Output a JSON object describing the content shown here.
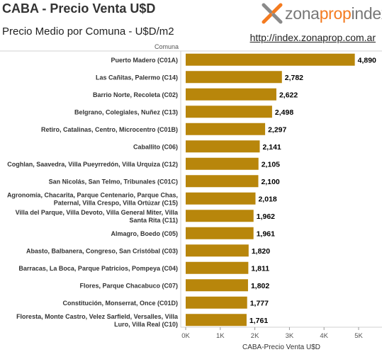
{
  "header": {
    "title": "CABA - Precio Venta U$D",
    "subtitle": "Precio Medio por Comuna - U$D/m2",
    "logo_part1": "zona",
    "logo_part2": "prop",
    "logo_part3": "index",
    "url": "http://index.zonaprop.com.ar"
  },
  "colors": {
    "bar": "#B8860B",
    "logo_orange": "#F47B20",
    "logo_gray": "#777777"
  },
  "chart_data": {
    "type": "bar",
    "orientation": "horizontal",
    "category_header": "Comuna",
    "xlabel": "CABA-Precio Venta U$D",
    "xlim": [
      0,
      5500
    ],
    "xticks": [
      0,
      1000,
      2000,
      3000,
      4000,
      5000
    ],
    "xtick_labels": [
      "0K",
      "1K",
      "2K",
      "3K",
      "4K",
      "5K"
    ],
    "grid": false,
    "categories": [
      "Puerto Madero (C01A)",
      "Las Cañitas, Palermo (C14)",
      "Barrio Norte, Recoleta (C02)",
      "Belgrano, Colegiales, Nuñez (C13)",
      "Retiro, Catalinas, Centro, Microcentro (C01B)",
      "Caballito (C06)",
      "Coghlan, Saavedra, Villa Pueyrredón, Villa Urquiza (C12)",
      "San Nicolás, San Telmo, Tribunales (C01C)",
      "Agronomía, Chacarita, Parque Centenario, Parque Chas, Paternal, Villa Crespo, Villa Ortúzar (C15)",
      "Villa del Parque, Villa Devoto, Villa General Miter, Villa Santa Rita (C11)",
      "Almagro, Boedo (C05)",
      "Abasto, Balbanera, Congreso, San Cristóbal (C03)",
      "Barracas, La Boca, Parque Patricios, Pompeya (C04)",
      "Flores, Parque Chacabuco (C07)",
      "Constitución, Monserrat, Once (C01D)",
      "Floresta, Monte Castro, Velez Sarfield, Versalles, Villa Luro, Villa Real (C10)"
    ],
    "category_lines": [
      [
        "Puerto Madero (C01A)"
      ],
      [
        "Las Cañitas, Palermo (C14)"
      ],
      [
        "Barrio Norte, Recoleta (C02)"
      ],
      [
        "Belgrano, Colegiales, Nuñez (C13)"
      ],
      [
        "Retiro, Catalinas, Centro, Microcentro (C01B)"
      ],
      [
        "Caballito (C06)"
      ],
      [
        "Coghlan, Saavedra, Villa Pueyrredón, Villa Urquiza (C12)"
      ],
      [
        "San Nicolás, San Telmo, Tribunales (C01C)"
      ],
      [
        "Agronomía, Chacarita, Parque Centenario, Parque Chas,",
        "Paternal, Villa Crespo, Villa Ortúzar (C15)"
      ],
      [
        "Villa del Parque, Villa Devoto, Villa General Miter, Villa",
        "Santa Rita (C11)"
      ],
      [
        "Almagro, Boedo (C05)"
      ],
      [
        "Abasto, Balbanera, Congreso, San Cristóbal (C03)"
      ],
      [
        "Barracas, La Boca, Parque Patricios, Pompeya (C04)"
      ],
      [
        "Flores, Parque Chacabuco (C07)"
      ],
      [
        "Constitución, Monserrat, Once (C01D)"
      ],
      [
        "Floresta, Monte Castro, Velez Sarfield, Versalles, Villa",
        "Luro, Villa Real (C10)"
      ]
    ],
    "values": [
      4890,
      2782,
      2622,
      2498,
      2297,
      2141,
      2105,
      2100,
      2018,
      1962,
      1961,
      1820,
      1811,
      1802,
      1777,
      1761
    ],
    "value_labels": [
      "4,890",
      "2,782",
      "2,622",
      "2,498",
      "2,297",
      "2,141",
      "2,105",
      "2,100",
      "2,018",
      "1,962",
      "1,961",
      "1,820",
      "1,811",
      "1,802",
      "1,777",
      "1,761"
    ]
  }
}
